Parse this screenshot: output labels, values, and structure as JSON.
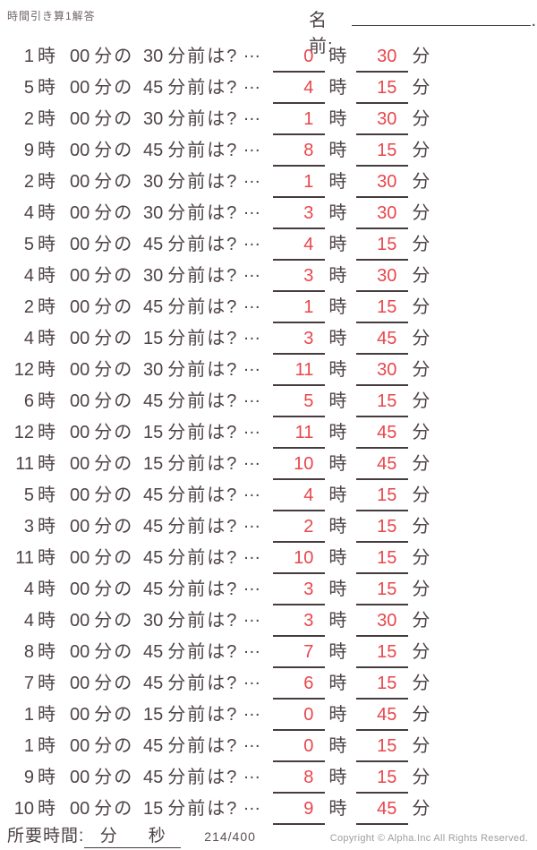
{
  "header": {
    "title": "時間引き算1解答",
    "name_label": "名前:",
    "name_trailing_dot": "."
  },
  "labels": {
    "hour_unit": "時",
    "minute_connector": "分の",
    "question_suffix": "分前は?",
    "ellipsis": "…",
    "minute_unit": "分"
  },
  "problems": [
    {
      "hour": "1",
      "min": "00",
      "min_before": "30",
      "ans_hour": "0",
      "ans_min": "30"
    },
    {
      "hour": "5",
      "min": "00",
      "min_before": "45",
      "ans_hour": "4",
      "ans_min": "15"
    },
    {
      "hour": "2",
      "min": "00",
      "min_before": "30",
      "ans_hour": "1",
      "ans_min": "30"
    },
    {
      "hour": "9",
      "min": "00",
      "min_before": "45",
      "ans_hour": "8",
      "ans_min": "15"
    },
    {
      "hour": "2",
      "min": "00",
      "min_before": "30",
      "ans_hour": "1",
      "ans_min": "30"
    },
    {
      "hour": "4",
      "min": "00",
      "min_before": "30",
      "ans_hour": "3",
      "ans_min": "30"
    },
    {
      "hour": "5",
      "min": "00",
      "min_before": "45",
      "ans_hour": "4",
      "ans_min": "15"
    },
    {
      "hour": "4",
      "min": "00",
      "min_before": "30",
      "ans_hour": "3",
      "ans_min": "30"
    },
    {
      "hour": "2",
      "min": "00",
      "min_before": "45",
      "ans_hour": "1",
      "ans_min": "15"
    },
    {
      "hour": "4",
      "min": "00",
      "min_before": "15",
      "ans_hour": "3",
      "ans_min": "45"
    },
    {
      "hour": "12",
      "min": "00",
      "min_before": "30",
      "ans_hour": "11",
      "ans_min": "30"
    },
    {
      "hour": "6",
      "min": "00",
      "min_before": "45",
      "ans_hour": "5",
      "ans_min": "15"
    },
    {
      "hour": "12",
      "min": "00",
      "min_before": "15",
      "ans_hour": "11",
      "ans_min": "45"
    },
    {
      "hour": "11",
      "min": "00",
      "min_before": "15",
      "ans_hour": "10",
      "ans_min": "45"
    },
    {
      "hour": "5",
      "min": "00",
      "min_before": "45",
      "ans_hour": "4",
      "ans_min": "15"
    },
    {
      "hour": "3",
      "min": "00",
      "min_before": "45",
      "ans_hour": "2",
      "ans_min": "15"
    },
    {
      "hour": "11",
      "min": "00",
      "min_before": "45",
      "ans_hour": "10",
      "ans_min": "15"
    },
    {
      "hour": "4",
      "min": "00",
      "min_before": "45",
      "ans_hour": "3",
      "ans_min": "15"
    },
    {
      "hour": "4",
      "min": "00",
      "min_before": "30",
      "ans_hour": "3",
      "ans_min": "30"
    },
    {
      "hour": "8",
      "min": "00",
      "min_before": "45",
      "ans_hour": "7",
      "ans_min": "15"
    },
    {
      "hour": "7",
      "min": "00",
      "min_before": "45",
      "ans_hour": "6",
      "ans_min": "15"
    },
    {
      "hour": "1",
      "min": "00",
      "min_before": "15",
      "ans_hour": "0",
      "ans_min": "45"
    },
    {
      "hour": "1",
      "min": "00",
      "min_before": "45",
      "ans_hour": "0",
      "ans_min": "15"
    },
    {
      "hour": "9",
      "min": "00",
      "min_before": "45",
      "ans_hour": "8",
      "ans_min": "15"
    },
    {
      "hour": "10",
      "min": "00",
      "min_before": "15",
      "ans_hour": "9",
      "ans_min": "45"
    }
  ],
  "footer": {
    "time_label": "所要時間:",
    "minutes_label": "分",
    "seconds_label": "秒",
    "page_number": "214/400",
    "copyright": "Copyright ©  Alpha.Inc All Rights Reserved."
  },
  "colors": {
    "answer_red": "#e8464b",
    "ink": "#4e4347",
    "underline": "#463c3e",
    "copyright_gray": "#9d9d9d"
  }
}
